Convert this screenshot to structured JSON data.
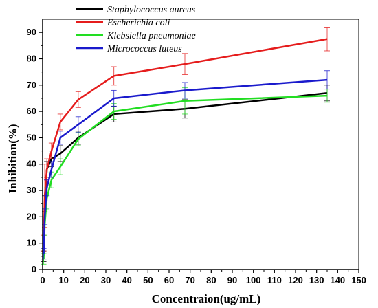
{
  "chart_data": {
    "type": "line",
    "xlabel": "Concentraion(ug/mL)",
    "ylabel": "Inhibition(%)",
    "xlim": [
      0,
      150
    ],
    "ylim": [
      0,
      95
    ],
    "xticks": [
      0,
      10,
      20,
      30,
      40,
      50,
      60,
      70,
      80,
      90,
      100,
      110,
      120,
      130,
      140,
      150
    ],
    "yticks": [
      0,
      10,
      20,
      30,
      40,
      50,
      60,
      70,
      80,
      90
    ],
    "grid": false,
    "legend_position": "top-left",
    "x": [
      0.5,
      1,
      2,
      4.2,
      8.4,
      16.9,
      33.8,
      67.5,
      135
    ],
    "series": [
      {
        "name": "Staphylococcus aureus",
        "color": "#000000",
        "values": [
          5,
          25,
          38,
          42,
          44,
          50,
          59,
          61,
          67
        ],
        "errors": [
          2,
          3,
          3,
          3,
          3,
          2.5,
          3,
          3.5,
          3
        ]
      },
      {
        "name": "Escherichia coli",
        "color": "#e51c1c",
        "values": [
          10,
          28,
          38,
          45,
          56,
          64.5,
          73.5,
          78,
          87.5
        ],
        "errors": [
          3,
          12,
          4,
          3,
          3,
          3,
          3.5,
          4,
          4.5
        ]
      },
      {
        "name": "Klebsiella pneumoniae",
        "color": "#22dd22",
        "values": [
          4,
          17,
          27,
          34,
          39,
          49.5,
          60,
          64,
          66
        ],
        "errors": [
          2,
          4,
          4,
          3,
          3,
          2.5,
          3,
          5,
          2.5
        ]
      },
      {
        "name": "Micrococcus luteus",
        "color": "#1a1acc",
        "values": [
          6,
          20,
          31,
          38,
          50,
          55,
          65,
          68,
          72
        ],
        "errors": [
          2,
          3,
          3,
          3,
          2.5,
          3,
          3,
          3,
          3.5
        ]
      }
    ]
  }
}
